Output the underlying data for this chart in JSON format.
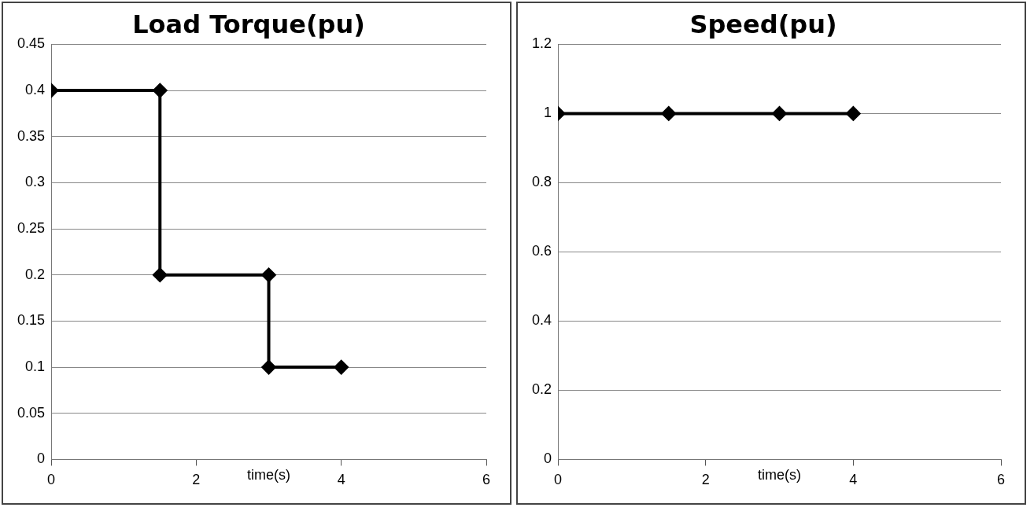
{
  "chart_data": [
    {
      "type": "line",
      "title": "Load Torque(pu)",
      "xlabel": "time(s)",
      "series": [
        {
          "color": "#000000",
          "x": [
            0,
            1.5,
            1.5,
            3,
            3,
            4
          ],
          "values": [
            0.4,
            0.4,
            0.2,
            0.2,
            0.1,
            0.1
          ]
        }
      ],
      "xlim": [
        0,
        6
      ],
      "xticks": [
        0,
        2,
        4,
        6
      ],
      "ylim": [
        0,
        0.45
      ],
      "yticks": [
        0,
        0.05,
        0.1,
        0.15,
        0.2,
        0.25,
        0.3,
        0.35,
        0.4,
        0.45
      ],
      "grid": "y",
      "marker": "diamond",
      "line_style": "solid",
      "legend": false
    },
    {
      "type": "line",
      "title": "Speed(pu)",
      "xlabel": "time(s)",
      "series": [
        {
          "color": "#000000",
          "x": [
            0,
            1.5,
            3,
            4
          ],
          "values": [
            1,
            1,
            1,
            1
          ]
        }
      ],
      "xlim": [
        0,
        6
      ],
      "xticks": [
        0,
        2,
        4,
        6
      ],
      "ylim": [
        0,
        1.2
      ],
      "yticks": [
        0,
        0.2,
        0.4,
        0.6,
        0.8,
        1,
        1.2
      ],
      "grid": "y",
      "marker": "diamond",
      "line_style": "solid",
      "legend": false
    }
  ]
}
